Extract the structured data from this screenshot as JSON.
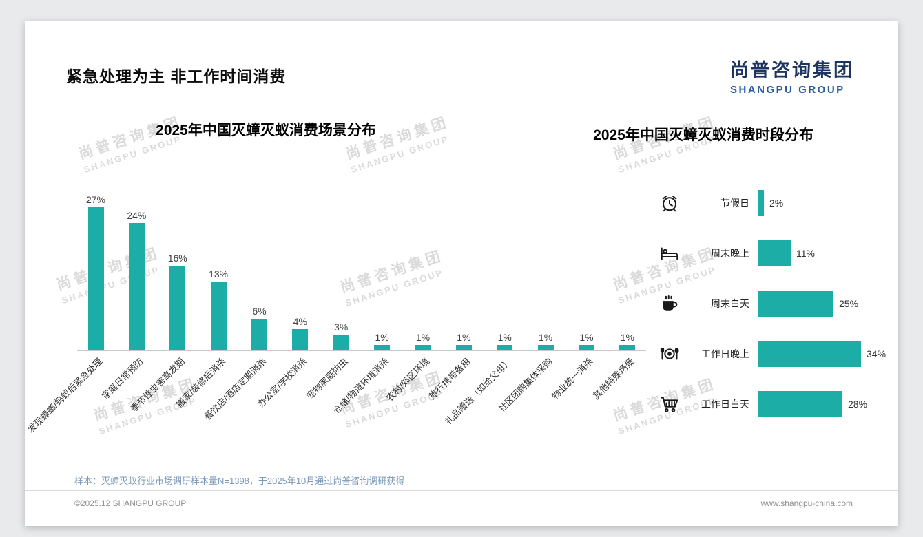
{
  "page": {
    "title": "紧急处理为主 非工作时间消费",
    "logo": {
      "cn": "尚普咨询集团",
      "en": "SHANGPU GROUP"
    },
    "watermark": {
      "line1": "尚普咨询集团",
      "line2": "SHANGPU GROUP"
    },
    "note": "样本：灭蟑灭蚁行业市场调研样本量N=1398，于2025年10月通过尚普咨询调研获得",
    "footer_left": "©2025.12 SHANGPU GROUP",
    "footer_right": "www.shangpu-china.com"
  },
  "colors": {
    "accent_teal": "#1badа6",
    "bar_teal": "#1bada6",
    "logo_navy": "#1d3560",
    "logo_blue": "#2a5d9f",
    "note_blue": "#7b99b8"
  },
  "chart_data": [
    {
      "type": "bar",
      "title": "2025年中国灭蟑灭蚁消费场景分布",
      "categories": [
        "发现蟑螂/蚂蚁后紧急处理",
        "家庭日常预防",
        "季节性虫害高发期",
        "搬家/装修后消杀",
        "餐饮店/酒店定期消杀",
        "办公室/学校消杀",
        "宠物家庭防虫",
        "仓储/物流环境消杀",
        "农村/郊区环境",
        "旅行携带备用",
        "礼品赠送（如给父母）",
        "社区团购集体采购",
        "物业统一消杀",
        "其他特殊场景"
      ],
      "values": [
        27,
        24,
        16,
        13,
        6,
        4,
        3,
        1,
        1,
        1,
        1,
        1,
        1,
        1
      ],
      "unit": "%",
      "bar_color": "#1bada6",
      "ylim": [
        0,
        30
      ],
      "grid": false,
      "value_labels": "above bars",
      "category_label_rotation": -45
    },
    {
      "type": "bar-horizontal",
      "title": "2025年中国灭蟑灭蚁消费时段分布",
      "categories": [
        "节假日",
        "周末晚上",
        "周末白天",
        "工作日晚上",
        "工作日白天"
      ],
      "values": [
        2,
        11,
        25,
        34,
        28
      ],
      "icons": [
        "alarm-clock",
        "bed",
        "coffee",
        "dining",
        "cart"
      ],
      "unit": "%",
      "bar_color": "#1bada6",
      "xlim": [
        0,
        40
      ],
      "grid": false,
      "value_labels": "right of bars"
    }
  ]
}
